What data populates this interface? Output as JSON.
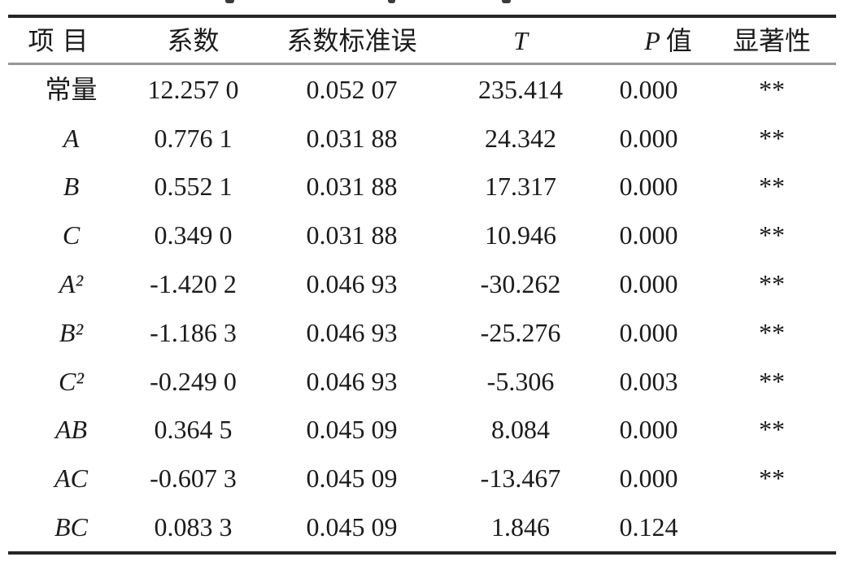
{
  "colors": {
    "background": "#ffffff",
    "text": "#1b1b1b",
    "thick_rule": "#262626",
    "header_rule": "#969696"
  },
  "table": {
    "headers": [
      {
        "label": "项目"
      },
      {
        "label": "系数"
      },
      {
        "label": "系数标准误"
      },
      {
        "label": "T"
      },
      {
        "symbol": "P",
        "suffix": "值"
      },
      {
        "label": "显著性"
      }
    ],
    "rows": [
      {
        "item": "常量",
        "coef": "12.257 0",
        "se": "0.052 07",
        "t": "235.414",
        "p": "0.000",
        "sig": "**"
      },
      {
        "item": "A",
        "coef": "0.776 1",
        "se": "0.031 88",
        "t": "24.342",
        "p": "0.000",
        "sig": "**"
      },
      {
        "item": "B",
        "coef": "0.552 1",
        "se": "0.031 88",
        "t": "17.317",
        "p": "0.000",
        "sig": "**"
      },
      {
        "item": "C",
        "coef": "0.349 0",
        "se": "0.031 88",
        "t": "10.946",
        "p": "0.000",
        "sig": "**"
      },
      {
        "item": "A²",
        "coef": "-1.420 2",
        "se": "0.046 93",
        "t": "-30.262",
        "p": "0.000",
        "sig": "**"
      },
      {
        "item": "B²",
        "coef": "-1.186 3",
        "se": "0.046 93",
        "t": "-25.276",
        "p": "0.000",
        "sig": "**"
      },
      {
        "item": "C²",
        "coef": "-0.249 0",
        "se": "0.046 93",
        "t": "-5.306",
        "p": "0.003",
        "sig": "**"
      },
      {
        "item": "AB",
        "coef": "0.364 5",
        "se": "0.045 09",
        "t": "8.084",
        "p": "0.000",
        "sig": "**"
      },
      {
        "item": "AC",
        "coef": "-0.607 3",
        "se": "0.045 09",
        "t": "-13.467",
        "p": "0.000",
        "sig": "**"
      },
      {
        "item": "BC",
        "coef": "0.083 3",
        "se": "0.045 09",
        "t": "1.846",
        "p": "0.124",
        "sig": ""
      }
    ]
  }
}
